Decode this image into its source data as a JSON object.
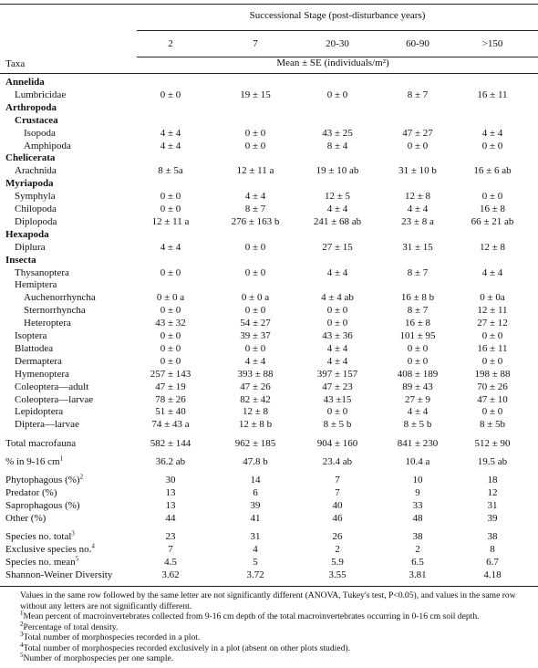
{
  "header": {
    "spanner": "Successional Stage (post-disturbance years)",
    "columns": [
      "2",
      "7",
      "20-30",
      "60-90",
      ">150"
    ],
    "row_header": "Taxa",
    "units": "Mean ± SE (individuals/m²)"
  },
  "taxa": [
    {
      "label": "Annelida",
      "bold": true,
      "children": [
        {
          "label": "Lumbricidae",
          "cells": [
            "0 ± 0",
            "19 ± 15",
            "0 ± 0",
            "8 ± 7",
            "16 ± 11"
          ]
        }
      ]
    },
    {
      "label": "Arthropoda",
      "bold": true,
      "children": [
        {
          "label": "Crustacea",
          "bold": true,
          "children": [
            {
              "label": "Isopoda",
              "cells": [
                "4 ± 4",
                "0 ± 0",
                "43 ± 25",
                "47 ± 27",
                "4 ± 4"
              ]
            },
            {
              "label": "Amphipoda",
              "cells": [
                "4 ± 4",
                "0 ± 0",
                "8 ± 4",
                "0 ± 0",
                "0 ± 0"
              ]
            }
          ]
        }
      ]
    },
    {
      "label": "Chelicerata",
      "bold": true,
      "children": [
        {
          "label": "Arachnida",
          "cells": [
            "8 ± 5a",
            "12 ± 11 a",
            "19 ± 10 ab",
            "31 ± 10 b",
            "16 ± 6 ab"
          ]
        }
      ]
    },
    {
      "label": "Myriapoda",
      "bold": true,
      "children": [
        {
          "label": "Symphyla",
          "cells": [
            "0 ± 0",
            "4 ± 4",
            "12 ± 5",
            "12 ± 8",
            "0 ± 0"
          ]
        },
        {
          "label": "Chilopoda",
          "cells": [
            "0 ± 0",
            "8 ± 7",
            "4 ± 4",
            "4 ± 4",
            "16 ± 8"
          ]
        },
        {
          "label": "Diplopoda",
          "cells": [
            "12 ± 11 a",
            "276 ± 163 b",
            "241 ± 68 ab",
            "23 ± 8 a",
            "66 ± 21 ab"
          ]
        }
      ]
    },
    {
      "label": "Hexapoda",
      "bold": true,
      "children": [
        {
          "label": "Diplura",
          "cells": [
            "4 ± 4",
            "0 ± 0",
            "27 ± 15",
            "31 ± 15",
            "12 ± 8"
          ]
        }
      ]
    },
    {
      "label": "Insecta",
      "bold": true,
      "children": [
        {
          "label": "Thysanoptera",
          "cells": [
            "0 ± 0",
            "0 ± 0",
            "4 ± 4",
            "8 ± 7",
            "4 ± 4"
          ]
        },
        {
          "label": "Hemiptera",
          "children": [
            {
              "label": "Auchenorrhyncha",
              "cells": [
                "0 ± 0 a",
                "0 ± 0 a",
                "4 ± 4 ab",
                "16 ± 8 b",
                "0 ± 0a"
              ]
            },
            {
              "label": "Sternorrhyncha",
              "cells": [
                "0 ± 0",
                "0 ± 0",
                "0 ± 0",
                "8 ± 7",
                "12 ± 11"
              ]
            },
            {
              "label": "Heteroptera",
              "cells": [
                "43 ± 32",
                "54 ± 27",
                "0 ± 0",
                "16 ± 8",
                "27 ± 12"
              ]
            }
          ]
        },
        {
          "label": "Isoptera",
          "cells": [
            "0 ± 0",
            "39 ± 37",
            "43 ± 36",
            "101 ± 95",
            "0 ± 0"
          ]
        },
        {
          "label": "Blattodea",
          "cells": [
            "0 ± 0",
            "0 ± 0",
            "4 ± 4",
            "0 ± 0",
            "16 ± 11"
          ]
        },
        {
          "label": "Dermaptera",
          "cells": [
            "0 ± 0",
            "4 ± 4",
            "4 ± 4",
            "0 ± 0",
            "0 ± 0"
          ]
        },
        {
          "label": "Hymenoptera",
          "cells": [
            "257 ± 143",
            "393 ± 88",
            "397 ± 157",
            "408 ± 189",
            "198 ± 88"
          ]
        },
        {
          "label": "Coleoptera—adult",
          "cells": [
            "47 ± 19",
            "47 ± 26",
            "47 ± 23",
            "89 ± 43",
            "70 ± 26"
          ]
        },
        {
          "label": "Coleoptera—larvae",
          "cells": [
            "78 ± 26",
            "82 ± 42",
            "43 ±15",
            "27 ± 9",
            "47 ± 10"
          ]
        },
        {
          "label": "Lepidoptera",
          "cells": [
            "51 ± 40",
            "12 ± 8",
            "0 ± 0",
            "4 ± 4",
            "0 ± 0"
          ]
        },
        {
          "label": "Diptera—larvae",
          "cells": [
            "74 ± 43 a",
            "12 ± 8 b",
            "8 ± 5 b",
            "8 ± 5 b",
            "8 ± 5b"
          ]
        }
      ]
    }
  ],
  "summary": [
    [
      {
        "label": "Total macrofauna",
        "cells": [
          "582 ± 144",
          "962 ± 185",
          "904 ± 160",
          "841 ± 230",
          "512 ± 90"
        ]
      }
    ],
    [
      {
        "label": "% in 9-16 cm",
        "note": "1",
        "cells": [
          "36.2 ab",
          "47.8 b",
          "23.4 ab",
          "10.4 a",
          "19.5 ab"
        ]
      }
    ],
    [
      {
        "label": "Phytophagous (%)",
        "note": "2",
        "cells": [
          "30",
          "14",
          "7",
          "10",
          "18"
        ]
      },
      {
        "label": "Predator (%)",
        "cells": [
          "13",
          "6",
          "7",
          "9",
          "12"
        ]
      },
      {
        "label": "Saprophagous (%)",
        "cells": [
          "13",
          "39",
          "40",
          "33",
          "31"
        ]
      },
      {
        "label": "Other (%)",
        "cells": [
          "44",
          "41",
          "46",
          "48",
          "39"
        ]
      }
    ],
    [
      {
        "label": "Species no. total",
        "note": "3",
        "cells": [
          "23",
          "31",
          "26",
          "38",
          "38"
        ]
      },
      {
        "label": "Exclusive species no.",
        "note": "4",
        "cells": [
          "7",
          "4",
          "2",
          "2",
          "8"
        ]
      },
      {
        "label": "Species no. mean",
        "note": "5",
        "cells": [
          "4.5",
          "5",
          "5.9",
          "6.5",
          "6.7"
        ]
      },
      {
        "label": "Shannon-Weiner Diversity",
        "cells": [
          "3.62",
          "3.72",
          "3.55",
          "3.81",
          "4.18"
        ]
      }
    ]
  ],
  "footer": {
    "text": "Values in the same row followed by the same letter are not significantly different (ANOVA, Tukey's test, P<0.05), and values in the same row without any letters are not significantly different.",
    "notes": [
      {
        "mark": "1",
        "text": "Mean percent of macroinvertebrates collected from 9-16 cm depth of the total macroinvertebrates occurring in 0-16 cm soil depth."
      },
      {
        "mark": "2",
        "text": "Percentage of total density."
      },
      {
        "mark": "3",
        "text": "Total number of morphospecies recorded in a plot."
      },
      {
        "mark": "4",
        "text": "Total number of morphospecies recorded exclusively in a plot (absent on other plots studied)."
      },
      {
        "mark": "5",
        "text": "Number of morphospecies per one sample."
      }
    ]
  }
}
